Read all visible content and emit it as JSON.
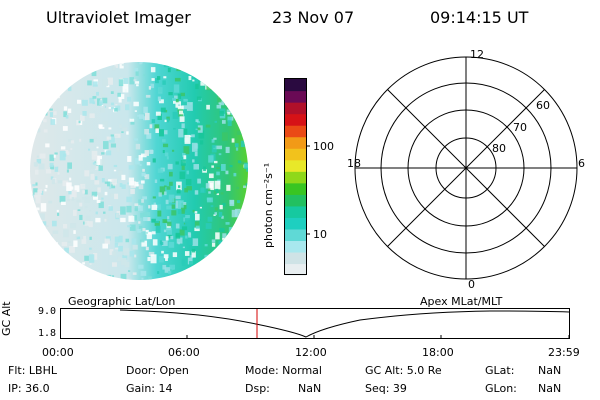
{
  "header": {
    "title": "Ultraviolet Imager",
    "date": "23 Nov 07",
    "time": "09:14:15 UT"
  },
  "colorbar": {
    "unit_label": "photon cm⁻²s⁻¹",
    "ticks": [
      "100",
      "10"
    ],
    "colors": [
      "#e8eef0",
      "#cfe3e6",
      "#a8e8ee",
      "#5fd9d6",
      "#1ecfc0",
      "#16c9a0",
      "#22c060",
      "#39c522",
      "#8fd81a",
      "#e8e829",
      "#f2c21c",
      "#f29a17",
      "#ea4a16",
      "#d61217",
      "#b0102a",
      "#6a0a55",
      "#2a0a40"
    ],
    "color_names": [
      "icon"
    ]
  },
  "polar_grid": {
    "hour_labels": [
      "12",
      "18",
      "6",
      "0"
    ],
    "lat_labels": [
      "60",
      "70",
      "80"
    ]
  },
  "timeline": {
    "y_axis_label": "GC Alt",
    "y_ticks": [
      "9.0",
      "1.8"
    ],
    "left_title": "Geographic Lat/Lon",
    "right_title": "Apex  MLat/MLT",
    "x_ticks": [
      "00:00",
      "06:00",
      "12:00",
      "18:00",
      "23:59"
    ],
    "marker_color": "#d40000"
  },
  "info": {
    "row1": {
      "flt": "Flt: LBHL",
      "door": "Door: Open",
      "mode": "Mode: Normal",
      "gcalt": "GC Alt: 5.0 Re",
      "glat_label": "GLat:",
      "glat_value": "NaN"
    },
    "row2": {
      "ip": "IP: 36.0",
      "gain": "Gain: 14",
      "dsp_label": "Dsp:",
      "dsp_value": "NaN",
      "seq": "Seq: 39",
      "glon_label": "GLon:",
      "glon_value": "NaN"
    }
  }
}
